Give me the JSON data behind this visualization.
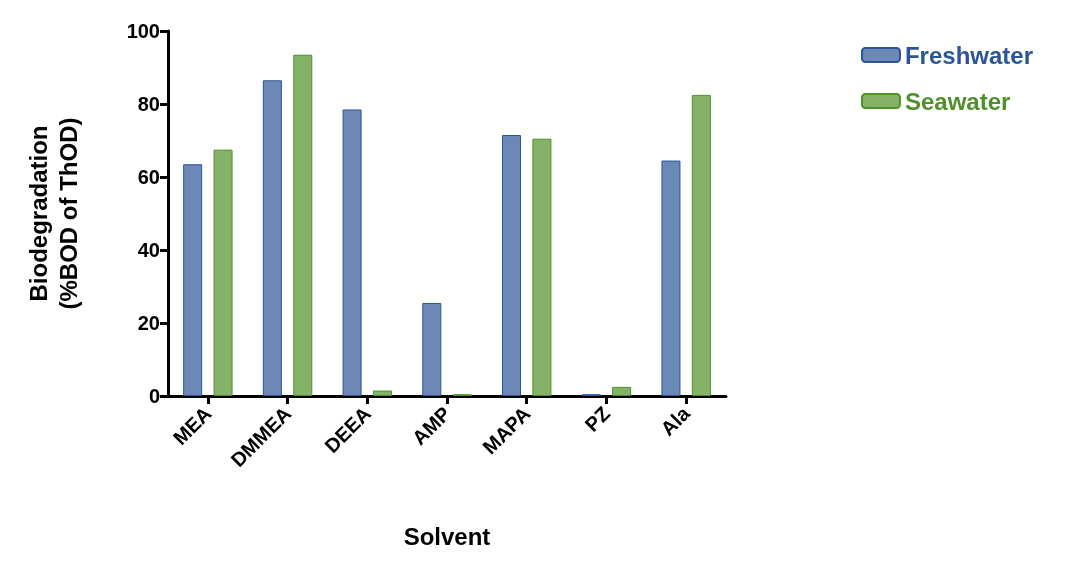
{
  "chart_data": {
    "type": "bar",
    "xlabel": "Solvent",
    "ylabel": "Biodegradation\n(%BOD of ThOD)",
    "categories": [
      "MEA",
      "DMMEA",
      "DEEA",
      "AMP",
      "MAPA",
      "PZ",
      "Ala"
    ],
    "series": [
      {
        "name": "Freshwater",
        "color": "#2b5597",
        "values": [
          63.5,
          86.5,
          78.5,
          25.5,
          71.5,
          0.5,
          64.5
        ]
      },
      {
        "name": "Seawater",
        "color": "#4f9128",
        "values": [
          67.5,
          93.5,
          1.5,
          0.5,
          70.5,
          2.5,
          82.5
        ]
      }
    ],
    "ylim": [
      0,
      100
    ],
    "yticks": [
      0,
      20,
      40,
      60,
      80,
      100
    ],
    "grid": false,
    "legend": "top right"
  }
}
